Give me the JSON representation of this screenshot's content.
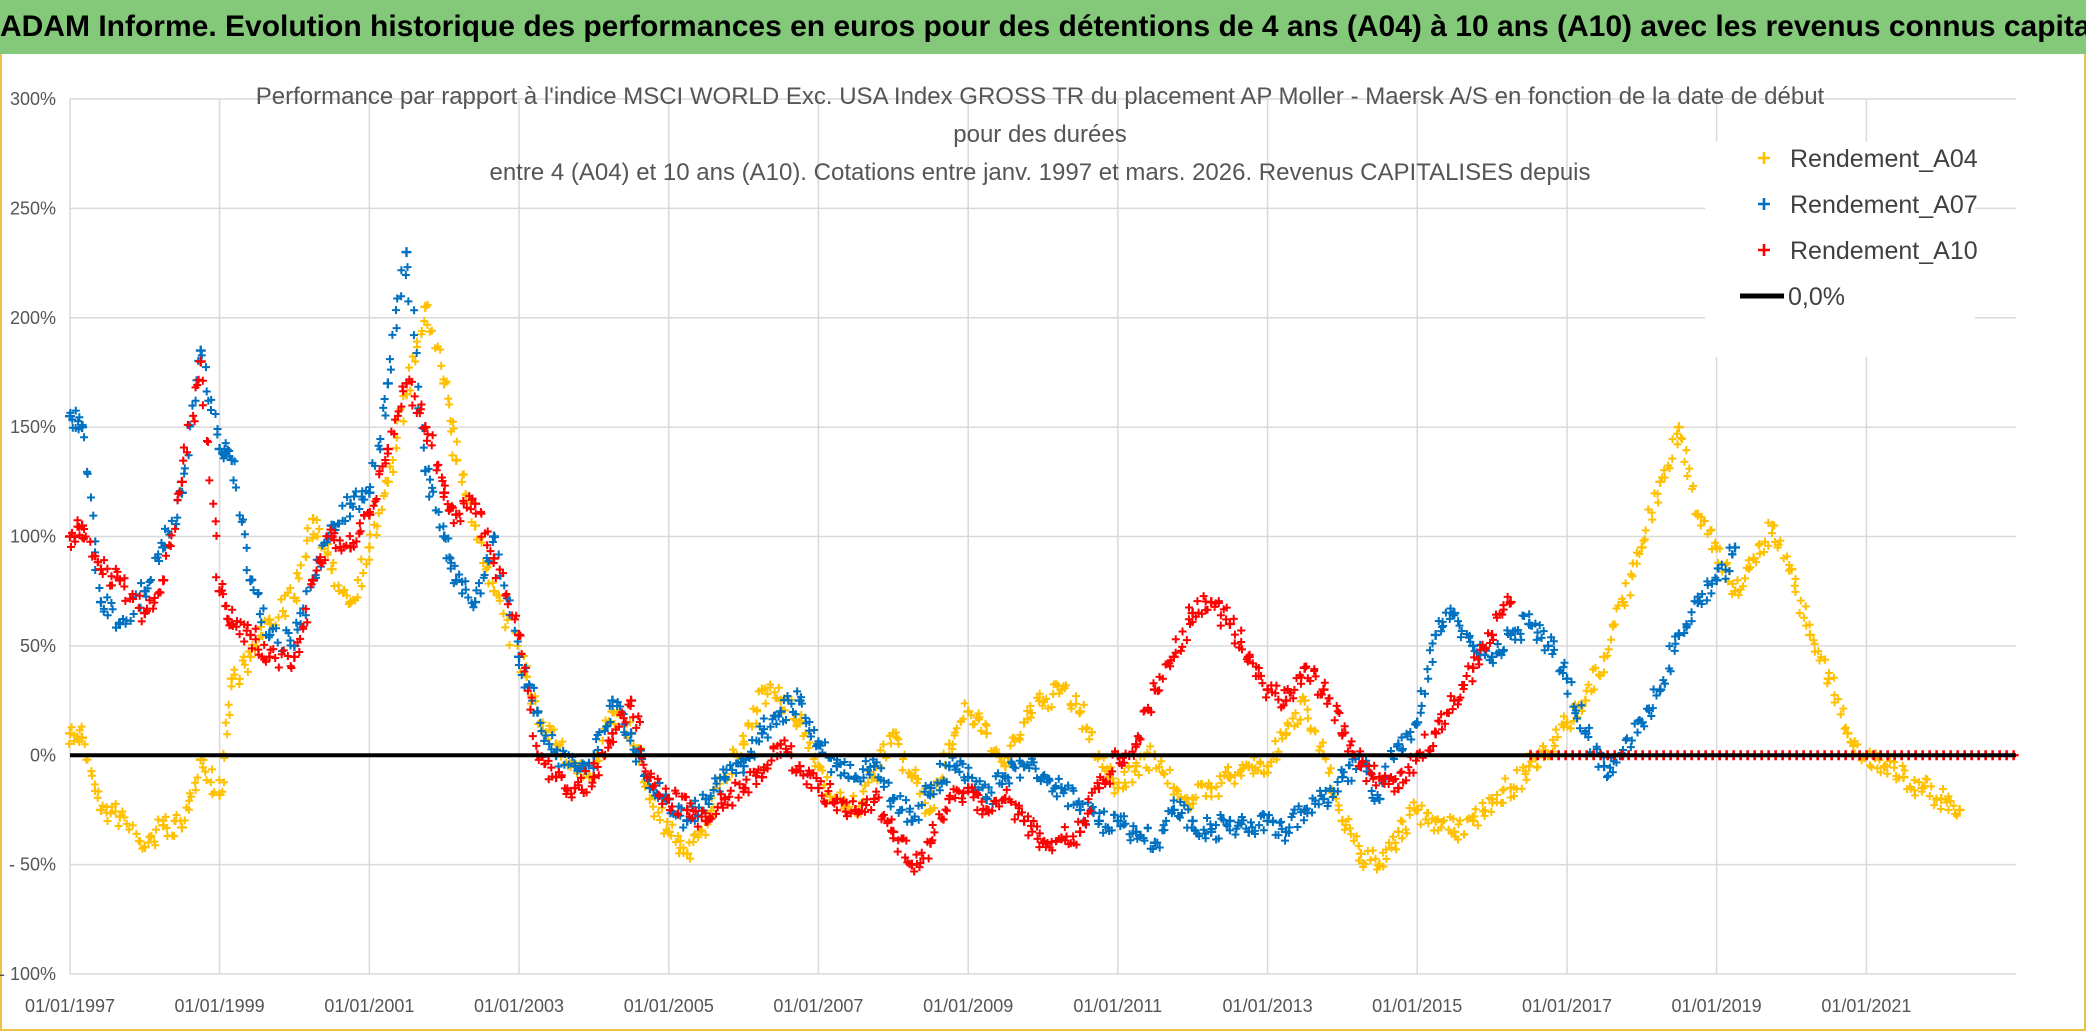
{
  "banner": {
    "title": "ADAM Informe. Evolution historique des performances en euros pour des détentions de 4 ans (A04) à 10 ans (A10) avec les revenus connus capitalisés"
  },
  "colors": {
    "banner_bg": "#84c97a",
    "frame": "#e9c24a",
    "A04": "#ffc000",
    "A07": "#0070c0",
    "A10": "#ff0000",
    "zero_line": "#000000",
    "grid": "#d9d9d9"
  },
  "chart_data": {
    "type": "scatter",
    "title_lines": [
      "Performance par rapport à l'indice MSCI WORLD Exc. USA Index GROSS TR  du placement AP Moller - Maersk A/S en fonction de la date de début",
      "pour des durées",
      "entre 4 (A04) et 10 ans (A10). Cotations entre janv. 1997 et mars. 2026. Revenus CAPITALISES depuis"
    ],
    "marker": "+",
    "grid": true,
    "legend_position": "top-right",
    "x_range": [
      "1997-01-01",
      "2023-01-01"
    ],
    "x_ticks": [
      "01/01/1997",
      "01/01/1999",
      "01/01/2001",
      "01/01/2003",
      "01/01/2005",
      "01/01/2007",
      "01/01/2009",
      "01/01/2011",
      "01/01/2013",
      "01/01/2015",
      "01/01/2017",
      "01/01/2019",
      "01/01/2021"
    ],
    "y_range": [
      -100,
      300
    ],
    "y_tick_values": [
      -100,
      -50,
      0,
      50,
      100,
      150,
      200,
      250,
      300
    ],
    "y_tick_labels": [
      "- 100%",
      "- 50%",
      "0%",
      "50%",
      "100%",
      "150%",
      "200%",
      "250%",
      "300%"
    ],
    "reference_line": {
      "name": "0,0%",
      "y": 0
    },
    "series": [
      {
        "name": "Rendement_A04",
        "color": "#ffc000",
        "points": [
          [
            "1997-01-01",
            10
          ],
          [
            "1997-03-01",
            8
          ],
          [
            "1997-06-01",
            -25
          ],
          [
            "1997-09-01",
            -28
          ],
          [
            "1998-01-01",
            -42
          ],
          [
            "1998-04-01",
            -32
          ],
          [
            "1998-07-01",
            -33
          ],
          [
            "1998-10-01",
            -2
          ],
          [
            "1999-01-01",
            -18
          ],
          [
            "1999-03-01",
            35
          ],
          [
            "1999-06-01",
            45
          ],
          [
            "1999-09-01",
            62
          ],
          [
            "2000-01-01",
            72
          ],
          [
            "2000-04-01",
            108
          ],
          [
            "2000-07-01",
            85
          ],
          [
            "2000-10-01",
            70
          ],
          [
            "2001-01-01",
            95
          ],
          [
            "2001-04-01",
            125
          ],
          [
            "2001-07-01",
            165
          ],
          [
            "2001-10-01",
            205
          ],
          [
            "2002-01-01",
            170
          ],
          [
            "2002-03-01",
            135
          ],
          [
            "2002-06-01",
            105
          ],
          [
            "2002-09-01",
            75
          ],
          [
            "2003-01-01",
            45
          ],
          [
            "2003-04-01",
            20
          ],
          [
            "2003-07-01",
            5
          ],
          [
            "2003-10-01",
            -5
          ],
          [
            "2004-01-01",
            -10
          ],
          [
            "2004-04-01",
            20
          ],
          [
            "2004-07-01",
            10
          ],
          [
            "2004-10-01",
            -20
          ],
          [
            "2005-01-01",
            -35
          ],
          [
            "2005-04-01",
            -45
          ],
          [
            "2005-07-01",
            -30
          ],
          [
            "2005-10-01",
            -10
          ],
          [
            "2006-01-01",
            5
          ],
          [
            "2006-04-01",
            30
          ],
          [
            "2006-07-01",
            25
          ],
          [
            "2006-10-01",
            15
          ],
          [
            "2007-01-01",
            -5
          ],
          [
            "2007-04-01",
            -20
          ],
          [
            "2007-07-01",
            -25
          ],
          [
            "2007-10-01",
            -10
          ],
          [
            "2008-01-01",
            10
          ],
          [
            "2008-04-01",
            -10
          ],
          [
            "2008-07-01",
            -25
          ],
          [
            "2008-10-01",
            5
          ],
          [
            "2009-01-01",
            20
          ],
          [
            "2009-04-01",
            10
          ],
          [
            "2009-07-01",
            -5
          ],
          [
            "2009-10-01",
            15
          ],
          [
            "2010-01-01",
            25
          ],
          [
            "2010-04-01",
            30
          ],
          [
            "2010-07-01",
            20
          ],
          [
            "2010-10-01",
            0
          ],
          [
            "2011-01-01",
            -15
          ],
          [
            "2011-04-01",
            -5
          ],
          [
            "2011-07-01",
            0
          ],
          [
            "2011-10-01",
            -15
          ],
          [
            "2012-01-01",
            -20
          ],
          [
            "2012-04-01",
            -15
          ],
          [
            "2012-07-01",
            -10
          ],
          [
            "2012-10-01",
            -5
          ],
          [
            "2013-01-01",
            -5
          ],
          [
            "2013-04-01",
            10
          ],
          [
            "2013-07-01",
            25
          ],
          [
            "2013-10-01",
            0
          ],
          [
            "2014-01-01",
            -30
          ],
          [
            "2014-04-01",
            -45
          ],
          [
            "2014-07-01",
            -50
          ],
          [
            "2014-10-01",
            -35
          ],
          [
            "2015-01-01",
            -25
          ],
          [
            "2015-04-01",
            -30
          ],
          [
            "2015-07-01",
            -35
          ],
          [
            "2015-10-01",
            -30
          ],
          [
            "2016-01-01",
            -20
          ],
          [
            "2016-04-01",
            -15
          ],
          [
            "2016-07-01",
            -5
          ],
          [
            "2016-10-01",
            0
          ],
          [
            "2017-01-01",
            15
          ],
          [
            "2017-04-01",
            25
          ],
          [
            "2017-07-01",
            45
          ],
          [
            "2017-10-01",
            70
          ],
          [
            "2018-01-01",
            95
          ],
          [
            "2018-04-01",
            125
          ],
          [
            "2018-07-01",
            150
          ],
          [
            "2018-10-01",
            110
          ],
          [
            "2019-01-01",
            95
          ],
          [
            "2019-04-01",
            75
          ],
          [
            "2019-07-01",
            90
          ],
          [
            "2019-10-01",
            105
          ],
          [
            "2020-01-01",
            85
          ],
          [
            "2020-04-01",
            55
          ],
          [
            "2020-07-01",
            35
          ],
          [
            "2020-10-01",
            10
          ],
          [
            "2021-01-01",
            0
          ],
          [
            "2021-04-01",
            -5
          ],
          [
            "2021-07-01",
            -10
          ],
          [
            "2021-10-01",
            -15
          ],
          [
            "2022-01-01",
            -20
          ],
          [
            "2022-04-01",
            -25
          ]
        ]
      },
      {
        "name": "Rendement_A07",
        "color": "#0070c0",
        "points": [
          [
            "1997-01-01",
            155
          ],
          [
            "1997-03-01",
            150
          ],
          [
            "1997-06-01",
            70
          ],
          [
            "1997-09-01",
            60
          ],
          [
            "1998-01-01",
            75
          ],
          [
            "1998-04-01",
            95
          ],
          [
            "1998-07-01",
            120
          ],
          [
            "1998-10-01",
            185
          ],
          [
            "1999-01-01",
            140
          ],
          [
            "1999-03-01",
            135
          ],
          [
            "1999-06-01",
            80
          ],
          [
            "1999-09-01",
            55
          ],
          [
            "2000-01-01",
            50
          ],
          [
            "2000-04-01",
            80
          ],
          [
            "2000-07-01",
            105
          ],
          [
            "2000-10-01",
            115
          ],
          [
            "2001-01-01",
            120
          ],
          [
            "2001-04-01",
            170
          ],
          [
            "2001-07-01",
            230
          ],
          [
            "2001-10-01",
            130
          ],
          [
            "2002-01-01",
            100
          ],
          [
            "2002-03-01",
            80
          ],
          [
            "2002-06-01",
            70
          ],
          [
            "2002-09-01",
            100
          ],
          [
            "2003-01-01",
            45
          ],
          [
            "2003-04-01",
            20
          ],
          [
            "2003-07-01",
            0
          ],
          [
            "2003-10-01",
            -5
          ],
          [
            "2004-01-01",
            0
          ],
          [
            "2004-04-01",
            25
          ],
          [
            "2004-07-01",
            10
          ],
          [
            "2004-10-01",
            -15
          ],
          [
            "2005-01-01",
            -20
          ],
          [
            "2005-04-01",
            -30
          ],
          [
            "2005-07-01",
            -20
          ],
          [
            "2005-10-01",
            -10
          ],
          [
            "2006-01-01",
            -5
          ],
          [
            "2006-04-01",
            10
          ],
          [
            "2006-07-01",
            20
          ],
          [
            "2006-10-01",
            25
          ],
          [
            "2007-01-01",
            5
          ],
          [
            "2007-04-01",
            -5
          ],
          [
            "2007-07-01",
            -10
          ],
          [
            "2007-10-01",
            -5
          ],
          [
            "2008-01-01",
            -20
          ],
          [
            "2008-04-01",
            -30
          ],
          [
            "2008-07-01",
            -15
          ],
          [
            "2008-10-01",
            -5
          ],
          [
            "2009-01-01",
            -10
          ],
          [
            "2009-04-01",
            -20
          ],
          [
            "2009-07-01",
            -10
          ],
          [
            "2009-10-01",
            -5
          ],
          [
            "2010-01-01",
            -10
          ],
          [
            "2010-04-01",
            -15
          ],
          [
            "2010-07-01",
            -25
          ],
          [
            "2010-10-01",
            -30
          ],
          [
            "2011-01-01",
            -30
          ],
          [
            "2011-04-01",
            -35
          ],
          [
            "2011-07-01",
            -40
          ],
          [
            "2011-10-01",
            -25
          ],
          [
            "2012-01-01",
            -30
          ],
          [
            "2012-04-01",
            -35
          ],
          [
            "2012-07-01",
            -30
          ],
          [
            "2012-10-01",
            -35
          ],
          [
            "2013-01-01",
            -30
          ],
          [
            "2013-04-01",
            -35
          ],
          [
            "2013-07-01",
            -25
          ],
          [
            "2013-10-01",
            -20
          ],
          [
            "2014-01-01",
            -10
          ],
          [
            "2014-04-01",
            -5
          ],
          [
            "2014-07-01",
            -20
          ],
          [
            "2014-10-01",
            5
          ],
          [
            "2015-01-01",
            15
          ],
          [
            "2015-04-01",
            55
          ],
          [
            "2015-07-01",
            65
          ],
          [
            "2015-10-01",
            50
          ],
          [
            "2016-01-01",
            45
          ],
          [
            "2016-04-01",
            55
          ],
          [
            "2016-07-01",
            60
          ],
          [
            "2016-10-01",
            50
          ],
          [
            "2017-01-01",
            35
          ],
          [
            "2017-04-01",
            10
          ],
          [
            "2017-07-01",
            -5
          ],
          [
            "2017-10-01",
            0
          ],
          [
            "2018-01-01",
            15
          ],
          [
            "2018-04-01",
            30
          ],
          [
            "2018-07-01",
            55
          ],
          [
            "2018-10-01",
            70
          ],
          [
            "2019-01-01",
            80
          ],
          [
            "2019-04-01",
            95
          ]
        ]
      },
      {
        "name": "Rendement_A10",
        "color": "#ff0000",
        "points": [
          [
            "1997-01-01",
            100
          ],
          [
            "1997-03-01",
            105
          ],
          [
            "1997-06-01",
            85
          ],
          [
            "1997-09-01",
            80
          ],
          [
            "1998-01-01",
            65
          ],
          [
            "1998-04-01",
            80
          ],
          [
            "1998-07-01",
            125
          ],
          [
            "1998-10-01",
            180
          ],
          [
            "1999-01-01",
            75
          ],
          [
            "1999-03-01",
            60
          ],
          [
            "1999-06-01",
            55
          ],
          [
            "1999-09-01",
            45
          ],
          [
            "2000-01-01",
            45
          ],
          [
            "2000-04-01",
            80
          ],
          [
            "2000-07-01",
            100
          ],
          [
            "2000-10-01",
            95
          ],
          [
            "2001-01-01",
            110
          ],
          [
            "2001-04-01",
            140
          ],
          [
            "2001-07-01",
            170
          ],
          [
            "2001-10-01",
            150
          ],
          [
            "2002-01-01",
            120
          ],
          [
            "2002-03-01",
            110
          ],
          [
            "2002-06-01",
            115
          ],
          [
            "2002-09-01",
            90
          ],
          [
            "2003-01-01",
            55
          ],
          [
            "2003-04-01",
            0
          ],
          [
            "2003-07-01",
            -10
          ],
          [
            "2003-10-01",
            -15
          ],
          [
            "2004-01-01",
            -10
          ],
          [
            "2004-04-01",
            10
          ],
          [
            "2004-07-01",
            25
          ],
          [
            "2004-10-01",
            -10
          ],
          [
            "2005-01-01",
            -20
          ],
          [
            "2005-04-01",
            -25
          ],
          [
            "2005-07-01",
            -30
          ],
          [
            "2005-10-01",
            -20
          ],
          [
            "2006-01-01",
            -15
          ],
          [
            "2006-04-01",
            -10
          ],
          [
            "2006-07-01",
            5
          ],
          [
            "2006-10-01",
            -5
          ],
          [
            "2007-01-01",
            -15
          ],
          [
            "2007-04-01",
            -20
          ],
          [
            "2007-07-01",
            -25
          ],
          [
            "2007-10-01",
            -20
          ],
          [
            "2008-01-01",
            -35
          ],
          [
            "2008-04-01",
            -50
          ],
          [
            "2008-07-01",
            -40
          ],
          [
            "2008-10-01",
            -20
          ],
          [
            "2009-01-01",
            -15
          ],
          [
            "2009-04-01",
            -25
          ],
          [
            "2009-07-01",
            -20
          ],
          [
            "2009-10-01",
            -30
          ],
          [
            "2010-01-01",
            -40
          ],
          [
            "2010-04-01",
            -38
          ],
          [
            "2010-07-01",
            -35
          ],
          [
            "2010-10-01",
            -15
          ],
          [
            "2011-01-01",
            0
          ],
          [
            "2011-04-01",
            5
          ],
          [
            "2011-07-01",
            30
          ],
          [
            "2011-10-01",
            45
          ],
          [
            "2012-01-01",
            65
          ],
          [
            "2012-04-01",
            70
          ],
          [
            "2012-07-01",
            60
          ],
          [
            "2012-10-01",
            45
          ],
          [
            "2013-01-01",
            30
          ],
          [
            "2013-04-01",
            25
          ],
          [
            "2013-07-01",
            40
          ],
          [
            "2013-10-01",
            30
          ],
          [
            "2014-01-01",
            10
          ],
          [
            "2014-04-01",
            -5
          ],
          [
            "2014-07-01",
            -10
          ],
          [
            "2014-10-01",
            -15
          ],
          [
            "2015-01-01",
            0
          ],
          [
            "2015-04-01",
            10
          ],
          [
            "2015-07-01",
            25
          ],
          [
            "2015-10-01",
            40
          ],
          [
            "2016-01-01",
            55
          ],
          [
            "2016-04-01",
            70
          ]
        ]
      }
    ]
  }
}
